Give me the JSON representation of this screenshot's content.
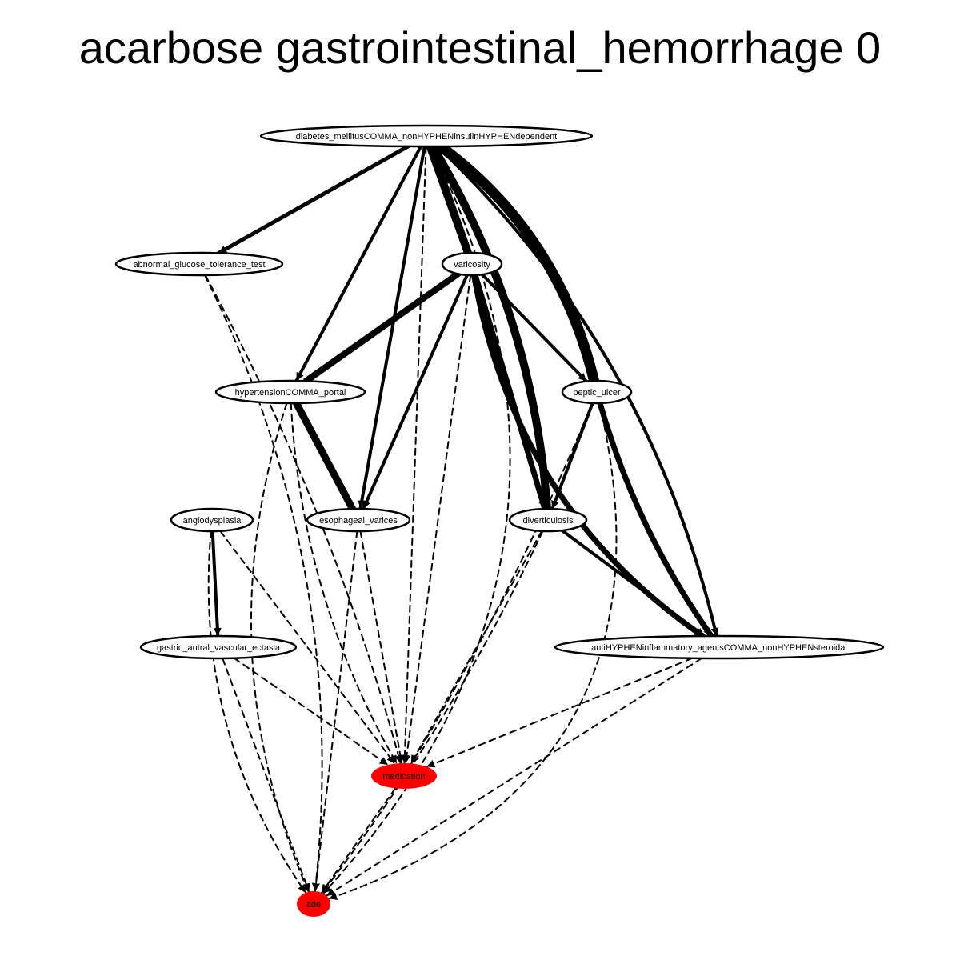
{
  "title": "acarbose gastrointestinal_hemorrhage 0",
  "colors": {
    "node_fill": "#ffffff",
    "highlight_fill": "#ff0000",
    "edge": "#000000"
  },
  "nodes": [
    {
      "id": "diabetes",
      "label": "diabetes_mellitusCOMMA_nonHYPHENinsulinHYPHENdependent",
      "highlight": false
    },
    {
      "id": "agtt",
      "label": "abnormal_glucose_tolerance_test",
      "highlight": false
    },
    {
      "id": "varicosity",
      "label": "varicosity",
      "highlight": false
    },
    {
      "id": "htn_portal",
      "label": "hypertensionCOMMA_portal",
      "highlight": false
    },
    {
      "id": "peptic_ulcer",
      "label": "peptic_ulcer",
      "highlight": false
    },
    {
      "id": "angiodysplasia",
      "label": "angiodysplasia",
      "highlight": false
    },
    {
      "id": "esoph_varices",
      "label": "esophageal_varices",
      "highlight": false
    },
    {
      "id": "diverticulosis",
      "label": "diverticulosis",
      "highlight": false
    },
    {
      "id": "gave",
      "label": "gastric_antral_vascular_ectasia",
      "highlight": false
    },
    {
      "id": "nsaid",
      "label": "antiHYPHENinflammatory_agentsCOMMA_nonHYPHENsteroidal",
      "highlight": false
    },
    {
      "id": "medication",
      "label": "medication",
      "highlight": true
    },
    {
      "id": "ade",
      "label": "ade",
      "highlight": true
    }
  ],
  "edges": [
    {
      "from": "diabetes",
      "to": "agtt",
      "style": "solid",
      "weight": 5
    },
    {
      "from": "diabetes",
      "to": "htn_portal",
      "style": "solid",
      "weight": 4
    },
    {
      "from": "diabetes",
      "to": "esoph_varices",
      "style": "solid",
      "weight": 4
    },
    {
      "from": "diabetes",
      "to": "varicosity",
      "style": "solid",
      "weight": 10
    },
    {
      "from": "diabetes",
      "to": "diverticulosis",
      "style": "solid",
      "weight": 10
    },
    {
      "from": "diabetes",
      "to": "peptic_ulcer",
      "style": "solid",
      "weight": 13
    },
    {
      "from": "diabetes",
      "to": "nsaid",
      "style": "solid",
      "weight": 4
    },
    {
      "from": "diabetes",
      "to": "medication",
      "style": "dashed",
      "weight": 2
    },
    {
      "from": "diabetes",
      "to": "ade",
      "style": "dashed",
      "weight": 2
    },
    {
      "from": "agtt",
      "to": "medication",
      "style": "dashed",
      "weight": 2
    },
    {
      "from": "agtt",
      "to": "ade",
      "style": "dashed",
      "weight": 2
    },
    {
      "from": "varicosity",
      "to": "htn_portal",
      "style": "solid",
      "weight": 8
    },
    {
      "from": "varicosity",
      "to": "esoph_varices",
      "style": "solid",
      "weight": 4
    },
    {
      "from": "varicosity",
      "to": "peptic_ulcer",
      "style": "solid",
      "weight": 4
    },
    {
      "from": "varicosity",
      "to": "diverticulosis",
      "style": "solid",
      "weight": 7
    },
    {
      "from": "varicosity",
      "to": "nsaid",
      "style": "solid",
      "weight": 7
    },
    {
      "from": "varicosity",
      "to": "medication",
      "style": "dashed",
      "weight": 2
    },
    {
      "from": "htn_portal",
      "to": "esoph_varices",
      "style": "solid",
      "weight": 9
    },
    {
      "from": "htn_portal",
      "to": "medication",
      "style": "dashed",
      "weight": 2
    },
    {
      "from": "htn_portal",
      "to": "ade",
      "style": "dashed",
      "weight": 2
    },
    {
      "from": "peptic_ulcer",
      "to": "diverticulosis",
      "style": "solid",
      "weight": 4
    },
    {
      "from": "peptic_ulcer",
      "to": "nsaid",
      "style": "solid",
      "weight": 7
    },
    {
      "from": "peptic_ulcer",
      "to": "medication",
      "style": "dashed",
      "weight": 2
    },
    {
      "from": "peptic_ulcer",
      "to": "ade",
      "style": "dashed",
      "weight": 2
    },
    {
      "from": "angiodysplasia",
      "to": "gave",
      "style": "solid",
      "weight": 4
    },
    {
      "from": "angiodysplasia",
      "to": "medication",
      "style": "dashed",
      "weight": 2
    },
    {
      "from": "angiodysplasia",
      "to": "ade",
      "style": "dashed",
      "weight": 2
    },
    {
      "from": "esoph_varices",
      "to": "medication",
      "style": "dashed",
      "weight": 2
    },
    {
      "from": "esoph_varices",
      "to": "ade",
      "style": "dashed",
      "weight": 2
    },
    {
      "from": "diverticulosis",
      "to": "nsaid",
      "style": "solid",
      "weight": 4
    },
    {
      "from": "diverticulosis",
      "to": "medication",
      "style": "dashed",
      "weight": 2
    },
    {
      "from": "diverticulosis",
      "to": "ade",
      "style": "dashed",
      "weight": 2
    },
    {
      "from": "gave",
      "to": "medication",
      "style": "dashed",
      "weight": 2
    },
    {
      "from": "gave",
      "to": "ade",
      "style": "dashed",
      "weight": 2
    },
    {
      "from": "nsaid",
      "to": "medication",
      "style": "dashed",
      "weight": 2
    },
    {
      "from": "nsaid",
      "to": "ade",
      "style": "dashed",
      "weight": 2
    },
    {
      "from": "medication",
      "to": "ade",
      "style": "dashed",
      "weight": 2
    }
  ]
}
